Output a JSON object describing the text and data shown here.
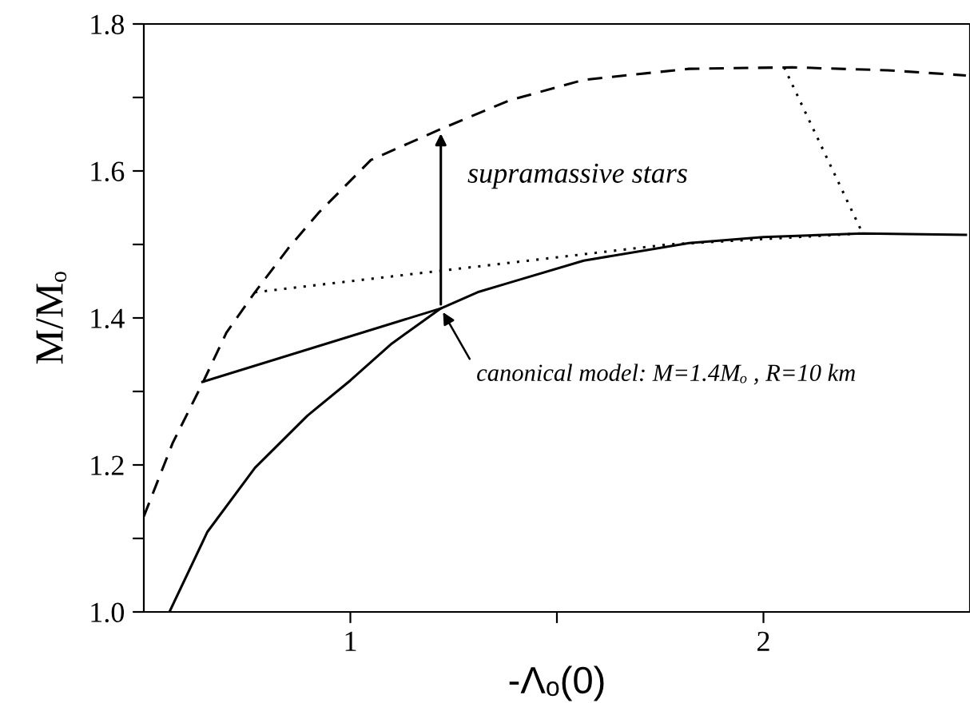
{
  "chart_data": {
    "type": "line",
    "xlabel": "-Λₒ(0)",
    "ylabel": "M/Mₒ",
    "xlim": [
      0.5,
      2.5
    ],
    "ylim": [
      1.0,
      1.8
    ],
    "xticks": [
      1,
      {
        "value": 1.5,
        "label": null
      },
      2
    ],
    "yticks": [
      {
        "value": 1.0,
        "label": "1.0"
      },
      {
        "value": 1.1,
        "label": null
      },
      {
        "value": 1.2,
        "label": "1.2"
      },
      {
        "value": 1.3,
        "label": null
      },
      {
        "value": 1.4,
        "label": "1.4"
      },
      {
        "value": 1.5,
        "label": null
      },
      {
        "value": 1.6,
        "label": "1.6"
      },
      {
        "value": 1.7,
        "label": null
      },
      {
        "value": 1.8,
        "label": "1.8"
      }
    ],
    "grid": false,
    "series": [
      {
        "color": "#000000",
        "line_style": "dashed",
        "x": [
          0.5,
          0.57,
          0.642,
          0.7,
          0.769,
          0.85,
          0.923,
          1.05,
          1.219,
          1.385,
          1.565,
          1.82,
          2.07,
          2.3,
          2.49
        ],
        "values": [
          1.13,
          1.23,
          1.311,
          1.38,
          1.435,
          1.495,
          1.543,
          1.615,
          1.657,
          1.696,
          1.724,
          1.739,
          1.741,
          1.737,
          1.73
        ]
      },
      {
        "color": "#000000",
        "line_style": "solid",
        "x": [
          0.562,
          0.654,
          0.769,
          0.896,
          1.0,
          1.1,
          1.219,
          1.308,
          1.385,
          1.565,
          1.82,
          2.0,
          2.24,
          2.49
        ],
        "values": [
          1.0,
          1.109,
          1.196,
          1.267,
          1.315,
          1.365,
          1.413,
          1.435,
          1.448,
          1.478,
          1.502,
          1.51,
          1.515,
          1.513
        ]
      },
      {
        "color": "#000000",
        "line_style": "solid",
        "x": [
          0.642,
          1.219
        ],
        "values": [
          1.313,
          1.413
        ]
      },
      {
        "color": "#000000",
        "line_style": "dotted",
        "x": [
          0.769,
          1.77,
          2.24
        ],
        "values": [
          1.435,
          1.5,
          1.515
        ]
      },
      {
        "color": "#000000",
        "line_style": "dotted",
        "x": [
          2.05,
          2.24
        ],
        "values": [
          1.741,
          1.515
        ]
      }
    ],
    "annotations": [
      {
        "text": "supramassive stars",
        "x": 1.219,
        "y": 1.657
      },
      {
        "text": "canonical model: M=1.4Mₒ , R=10 km",
        "x": 1.219,
        "y": 1.413
      }
    ]
  }
}
